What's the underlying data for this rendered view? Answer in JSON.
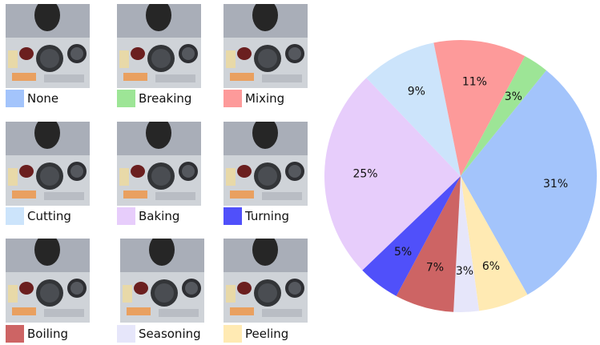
{
  "chart_data": {
    "type": "pie",
    "title": "",
    "slices": [
      {
        "label": "None",
        "value": 31,
        "text": "31%",
        "color": "#a3c4fb"
      },
      {
        "label": "Peeling",
        "value": 6,
        "text": "6%",
        "color": "#ffeab3"
      },
      {
        "label": "Seasoning",
        "value": 3,
        "text": "3%",
        "color": "#e6e6fa"
      },
      {
        "label": "Boiling",
        "value": 7,
        "text": "7%",
        "color": "#cd6464"
      },
      {
        "label": "Turning",
        "value": 5,
        "text": "5%",
        "color": "#5050fa"
      },
      {
        "label": "Baking",
        "value": 25,
        "text": "25%",
        "color": "#e7cdfb"
      },
      {
        "label": "Cutting",
        "value": 9,
        "text": "9%",
        "color": "#cce4fb"
      },
      {
        "label": "Mixing",
        "value": 11,
        "text": "11%",
        "color": "#fd9a9a"
      },
      {
        "label": "Breaking",
        "value": 3,
        "text": "3%",
        "color": "#9de596"
      }
    ]
  },
  "legend": [
    {
      "label": "None",
      "color": "#a3c4fb"
    },
    {
      "label": "Breaking",
      "color": "#9de596"
    },
    {
      "label": "Mixing",
      "color": "#fd9a9a"
    },
    {
      "label": "Cutting",
      "color": "#cce4fb"
    },
    {
      "label": "Baking",
      "color": "#e7cdfb"
    },
    {
      "label": "Turning",
      "color": "#5050fa"
    },
    {
      "label": "Boiling",
      "color": "#cd6464"
    },
    {
      "label": "Seasoning",
      "color": "#e6e6fa"
    },
    {
      "label": "Peeling",
      "color": "#ffeab3"
    }
  ],
  "thumbnails": [
    {
      "action": "None"
    },
    {
      "action": "Breaking"
    },
    {
      "action": "Mixing"
    },
    {
      "action": "Cutting"
    },
    {
      "action": "Baking"
    },
    {
      "action": "Turning"
    },
    {
      "action": "Boiling"
    },
    {
      "action": "Seasoning"
    },
    {
      "action": "Peeling"
    }
  ]
}
